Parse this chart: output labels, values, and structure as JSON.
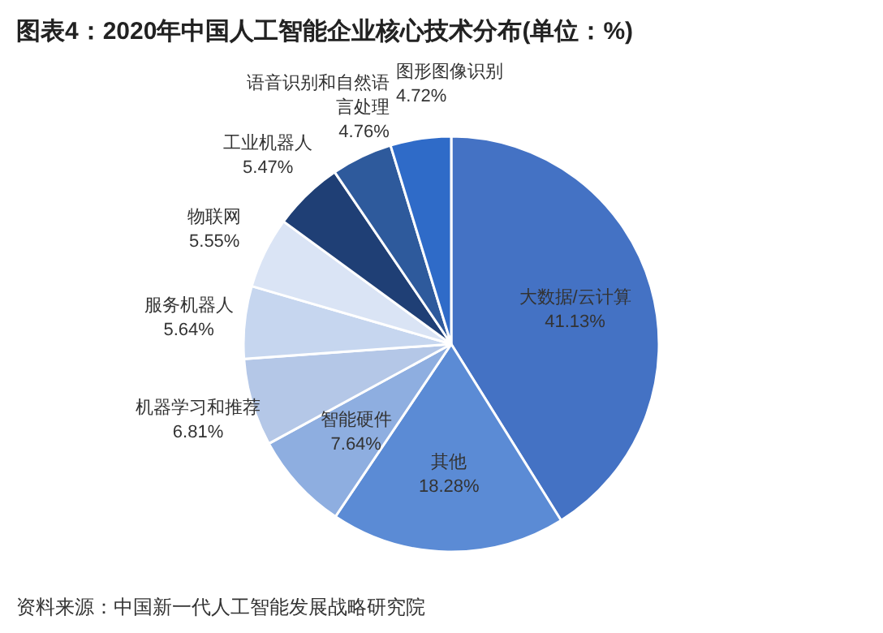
{
  "chart_data": {
    "type": "pie",
    "title": "图表4：2020年中国人工智能企业核心技术分布(单位：%)",
    "categories": [
      "大数据/云计算",
      "其他",
      "智能硬件",
      "机器学习和推荐",
      "服务机器人",
      "物联网",
      "工业机器人",
      "语音识别和自然语言处理",
      "图形图像识别"
    ],
    "values": [
      41.13,
      18.28,
      7.64,
      6.81,
      5.64,
      5.55,
      5.47,
      4.76,
      4.72
    ],
    "colors": [
      "#4472c4",
      "#5b8bd5",
      "#8eaee0",
      "#b4c7e7",
      "#c6d6ef",
      "#dae4f5",
      "#1f3f75",
      "#2e5a9c",
      "#2f6bc8"
    ],
    "value_labels": [
      "41.13%",
      "18.28%",
      "7.64%",
      "6.81%",
      "5.64%",
      "5.55%",
      "5.47%",
      "4.76%",
      "4.72%"
    ],
    "annotations": [
      "资料来源：中国新一代人工智能发展战略研究院"
    ]
  }
}
